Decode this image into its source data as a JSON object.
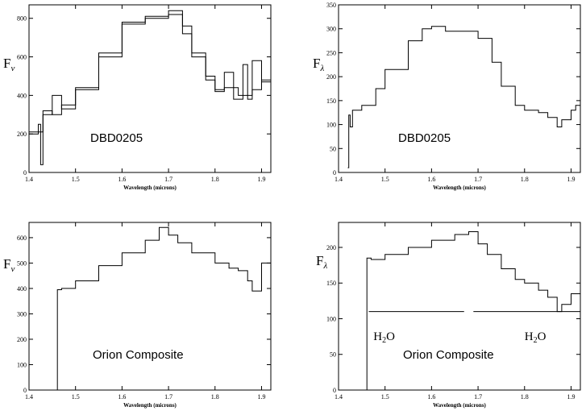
{
  "chart_data": [
    {
      "type": "line",
      "panel_label": "DBD0205",
      "ylabel_main": "F",
      "ylabel_sub": "ν",
      "xlabel": "Wavelength (microns)",
      "xlim": [
        1.4,
        1.92
      ],
      "ylim": [
        0,
        870
      ],
      "xticks": [
        1.4,
        1.5,
        1.6,
        1.7,
        1.8,
        1.9
      ],
      "xtick_labels": [
        "1.4",
        "1.5",
        "1.6",
        "1.7",
        "1.8",
        "1.9"
      ],
      "yticks": [
        0,
        200,
        400,
        600,
        800
      ],
      "ytick_labels": [
        "0",
        "200",
        "400",
        "600",
        "800"
      ],
      "series": [
        {
          "x": [
            1.4,
            1.42,
            1.425,
            1.43,
            1.45,
            1.47,
            1.5,
            1.55,
            1.6,
            1.65,
            1.7,
            1.73,
            1.75,
            1.78,
            1.8,
            1.82,
            1.85,
            1.87,
            1.88,
            1.9,
            1.92
          ],
          "y": [
            200,
            250,
            40,
            320,
            300,
            350,
            430,
            620,
            780,
            810,
            840,
            760,
            620,
            480,
            420,
            440,
            400,
            380,
            430,
            480,
            520
          ]
        },
        {
          "x": [
            1.4,
            1.43,
            1.45,
            1.47,
            1.5,
            1.55,
            1.6,
            1.65,
            1.7,
            1.73,
            1.75,
            1.78,
            1.8,
            1.82,
            1.84,
            1.86,
            1.87,
            1.88,
            1.9,
            1.92
          ],
          "y": [
            210,
            300,
            400,
            330,
            440,
            600,
            770,
            800,
            820,
            720,
            600,
            500,
            430,
            520,
            380,
            560,
            400,
            580,
            470,
            600
          ]
        }
      ]
    },
    {
      "type": "line",
      "panel_label": "DBD0205",
      "ylabel_main": "F",
      "ylabel_sub": "λ",
      "xlabel": "Wavelength (microns)",
      "xlim": [
        1.4,
        1.92
      ],
      "ylim": [
        0,
        350
      ],
      "xticks": [
        1.4,
        1.5,
        1.6,
        1.7,
        1.8,
        1.9
      ],
      "xtick_labels": [
        "1.4",
        "1.5",
        "1.6",
        "1.7",
        "1.8",
        "1.9"
      ],
      "yticks": [
        0,
        50,
        100,
        150,
        200,
        250,
        300,
        350
      ],
      "ytick_labels": [
        "0",
        "50",
        "100",
        "150",
        "200",
        "250",
        "300",
        "350"
      ],
      "series": [
        {
          "x": [
            1.42,
            1.422,
            1.425,
            1.43,
            1.45,
            1.48,
            1.5,
            1.55,
            1.58,
            1.6,
            1.63,
            1.66,
            1.7,
            1.73,
            1.75,
            1.78,
            1.8,
            1.83,
            1.85,
            1.87,
            1.88,
            1.9,
            1.91,
            1.92
          ],
          "y": [
            10,
            120,
            95,
            130,
            140,
            175,
            215,
            275,
            300,
            305,
            295,
            295,
            280,
            230,
            180,
            140,
            130,
            125,
            115,
            95,
            110,
            130,
            140,
            125
          ]
        }
      ]
    },
    {
      "type": "line",
      "panel_label": "Orion Composite",
      "ylabel_main": "F",
      "ylabel_sub": "ν",
      "xlabel": "Wavelength (microns)",
      "xlim": [
        1.4,
        1.92
      ],
      "ylim": [
        0,
        660
      ],
      "xticks": [
        1.4,
        1.5,
        1.6,
        1.7,
        1.8,
        1.9
      ],
      "xtick_labels": [
        "1.4",
        "1.5",
        "1.6",
        "1.7",
        "1.8",
        "1.9"
      ],
      "yticks": [
        0,
        100,
        200,
        300,
        400,
        500,
        600
      ],
      "ytick_labels": [
        "0",
        "100",
        "200",
        "300",
        "400",
        "500",
        "600"
      ],
      "series": [
        {
          "x": [
            1.46,
            1.461,
            1.47,
            1.5,
            1.55,
            1.6,
            1.65,
            1.68,
            1.7,
            1.72,
            1.75,
            1.8,
            1.83,
            1.85,
            1.87,
            1.88,
            1.9,
            1.92
          ],
          "y": [
            0,
            395,
            400,
            430,
            490,
            540,
            590,
            640,
            610,
            580,
            540,
            500,
            480,
            470,
            430,
            390,
            500,
            480
          ]
        }
      ]
    },
    {
      "type": "line",
      "panel_label": "Orion Composite",
      "ylabel_main": "F",
      "ylabel_sub": "λ",
      "xlabel": "Wavelength (microns)",
      "xlim": [
        1.4,
        1.92
      ],
      "ylim": [
        0,
        235
      ],
      "xticks": [
        1.4,
        1.5,
        1.6,
        1.7,
        1.8,
        1.9
      ],
      "xtick_labels": [
        "1.4",
        "1.5",
        "1.6",
        "1.7",
        "1.8",
        "1.9"
      ],
      "yticks": [
        0,
        50,
        100,
        150,
        200
      ],
      "ytick_labels": [
        "0",
        "50",
        "100",
        "150",
        "200"
      ],
      "series": [
        {
          "x": [
            1.46,
            1.461,
            1.47,
            1.5,
            1.55,
            1.6,
            1.65,
            1.68,
            1.7,
            1.72,
            1.75,
            1.78,
            1.8,
            1.83,
            1.85,
            1.87,
            1.88,
            1.9,
            1.92
          ],
          "y": [
            0,
            185,
            183,
            190,
            200,
            210,
            218,
            222,
            205,
            190,
            170,
            155,
            150,
            140,
            130,
            110,
            120,
            135,
            125
          ]
        }
      ],
      "annotations": [
        {
          "label_main": "H",
          "label_sub": "2",
          "label_tail": "O",
          "x_from": 1.465,
          "x_to": 1.67,
          "y": 110,
          "text_x": 1.475,
          "text_y": 70
        },
        {
          "label_main": "H",
          "label_sub": "2",
          "label_tail": "O",
          "x_from": 1.69,
          "x_to": 1.92,
          "y": 110,
          "text_x": 1.8,
          "text_y": 70
        }
      ]
    }
  ]
}
